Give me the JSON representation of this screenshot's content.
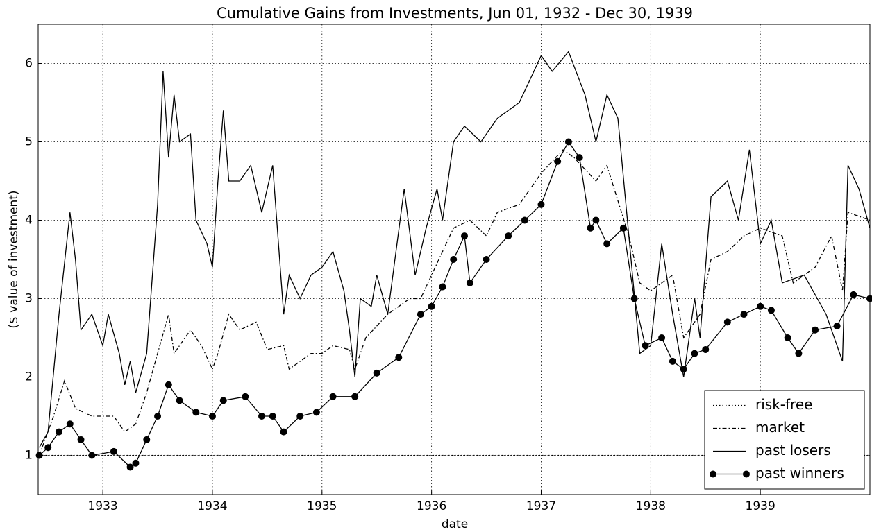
{
  "chart_data": {
    "type": "line",
    "title": "Cumulative Gains from Investments, Jun 01, 1932 - Dec 30, 1939",
    "xlabel": "date",
    "ylabel": "($ value of investment)",
    "xlim": [
      1932.41,
      1940.0
    ],
    "xticks": [
      1933,
      1934,
      1935,
      1936,
      1937,
      1938,
      1939
    ],
    "ylim": [
      0.5,
      6.5
    ],
    "yticks": [
      1,
      2,
      3,
      4,
      5,
      6
    ],
    "grid": true,
    "legend": "lower right",
    "series": [
      {
        "name": "risk-free",
        "color": "#000000",
        "linestyle": "dotted",
        "x": [
          1932.42,
          1940.0
        ],
        "values": [
          1.0,
          1.0
        ]
      },
      {
        "name": "market",
        "color": "#000000",
        "linestyle": "dashdot",
        "x": [
          1932.42,
          1932.55,
          1932.65,
          1932.75,
          1932.9,
          1933.1,
          1933.2,
          1933.3,
          1933.4,
          1933.5,
          1933.6,
          1933.65,
          1933.8,
          1933.9,
          1934.0,
          1934.05,
          1934.15,
          1934.25,
          1934.4,
          1934.5,
          1934.65,
          1934.7,
          1934.9,
          1935.0,
          1935.1,
          1935.25,
          1935.3,
          1935.4,
          1935.6,
          1935.8,
          1935.9,
          1936.0,
          1936.2,
          1936.35,
          1936.5,
          1936.6,
          1936.8,
          1937.0,
          1937.2,
          1937.3,
          1937.5,
          1937.6,
          1937.8,
          1937.9,
          1938.0,
          1938.2,
          1938.3,
          1938.45,
          1938.55,
          1938.7,
          1938.85,
          1939.0,
          1939.2,
          1939.3,
          1939.5,
          1939.65,
          1939.75,
          1939.8,
          1940.0
        ],
        "values": [
          1.0,
          1.5,
          1.95,
          1.6,
          1.5,
          1.5,
          1.3,
          1.4,
          1.8,
          2.3,
          2.8,
          2.3,
          2.6,
          2.4,
          2.1,
          2.3,
          2.8,
          2.6,
          2.7,
          2.35,
          2.4,
          2.1,
          2.3,
          2.3,
          2.4,
          2.35,
          2.1,
          2.5,
          2.8,
          3.0,
          3.0,
          3.3,
          3.9,
          4.0,
          3.8,
          4.1,
          4.2,
          4.6,
          4.9,
          4.8,
          4.5,
          4.7,
          3.8,
          3.2,
          3.1,
          3.3,
          2.5,
          2.8,
          3.5,
          3.6,
          3.8,
          3.9,
          3.8,
          3.2,
          3.4,
          3.8,
          3.1,
          4.1,
          4.0
        ]
      },
      {
        "name": "past losers",
        "color": "#000000",
        "linestyle": "solid",
        "x": [
          1932.42,
          1932.5,
          1932.6,
          1932.7,
          1932.75,
          1932.8,
          1932.9,
          1933.0,
          1933.05,
          1933.15,
          1933.2,
          1933.25,
          1933.3,
          1933.4,
          1933.5,
          1933.55,
          1933.6,
          1933.65,
          1933.7,
          1933.8,
          1933.85,
          1933.95,
          1934.0,
          1934.05,
          1934.1,
          1934.15,
          1934.25,
          1934.35,
          1934.45,
          1934.55,
          1934.65,
          1934.7,
          1934.8,
          1934.9,
          1935.0,
          1935.1,
          1935.2,
          1935.25,
          1935.3,
          1935.35,
          1935.45,
          1935.5,
          1935.6,
          1935.75,
          1935.85,
          1935.95,
          1936.05,
          1936.1,
          1936.2,
          1936.3,
          1936.45,
          1936.6,
          1936.8,
          1937.0,
          1937.1,
          1937.25,
          1937.4,
          1937.5,
          1937.6,
          1937.7,
          1937.8,
          1937.9,
          1938.0,
          1938.1,
          1938.2,
          1938.3,
          1938.4,
          1938.45,
          1938.55,
          1938.7,
          1938.8,
          1938.9,
          1939.0,
          1939.1,
          1939.2,
          1939.4,
          1939.6,
          1939.75,
          1939.8,
          1939.9,
          1940.0
        ],
        "values": [
          1.1,
          1.3,
          2.8,
          4.1,
          3.5,
          2.6,
          2.8,
          2.4,
          2.8,
          2.3,
          1.9,
          2.2,
          1.8,
          2.3,
          4.2,
          5.9,
          4.8,
          5.6,
          5.0,
          5.1,
          4.0,
          3.7,
          3.4,
          4.5,
          5.4,
          4.5,
          4.5,
          4.7,
          4.1,
          4.7,
          2.8,
          3.3,
          3.0,
          3.3,
          3.4,
          3.6,
          3.1,
          2.6,
          2.0,
          3.0,
          2.9,
          3.3,
          2.8,
          4.4,
          3.3,
          3.9,
          4.4,
          4.0,
          5.0,
          5.2,
          5.0,
          5.3,
          5.5,
          6.1,
          5.9,
          6.15,
          5.6,
          5.0,
          5.6,
          5.3,
          3.8,
          2.3,
          2.4,
          3.7,
          2.8,
          2.0,
          3.0,
          2.5,
          4.3,
          4.5,
          4.0,
          4.9,
          3.7,
          4.0,
          3.2,
          3.3,
          2.8,
          2.2,
          4.7,
          4.4,
          3.9
        ]
      },
      {
        "name": "past winners",
        "color": "#000000",
        "linestyle": "solid",
        "marker": "o",
        "x": [
          1932.42,
          1932.5,
          1932.6,
          1932.7,
          1932.8,
          1932.9,
          1933.1,
          1933.25,
          1933.3,
          1933.4,
          1933.5,
          1933.6,
          1933.7,
          1933.85,
          1934.0,
          1934.1,
          1934.3,
          1934.45,
          1934.55,
          1934.65,
          1934.8,
          1934.95,
          1935.1,
          1935.3,
          1935.5,
          1935.7,
          1935.9,
          1936.0,
          1936.1,
          1936.2,
          1936.3,
          1936.35,
          1936.5,
          1936.7,
          1936.85,
          1937.0,
          1937.15,
          1937.25,
          1937.35,
          1937.45,
          1937.5,
          1937.6,
          1937.75,
          1937.85,
          1937.95,
          1938.1,
          1938.2,
          1938.3,
          1938.4,
          1938.5,
          1938.7,
          1938.85,
          1939.0,
          1939.1,
          1939.25,
          1939.35,
          1939.5,
          1939.7,
          1939.85,
          1940.0
        ],
        "values": [
          1.0,
          1.1,
          1.3,
          1.4,
          1.2,
          1.0,
          1.05,
          0.85,
          0.9,
          1.2,
          1.5,
          1.9,
          1.7,
          1.55,
          1.5,
          1.7,
          1.75,
          1.5,
          1.5,
          1.3,
          1.5,
          1.55,
          1.75,
          1.75,
          2.05,
          2.25,
          2.8,
          2.9,
          3.15,
          3.5,
          3.8,
          3.2,
          3.5,
          3.8,
          4.0,
          4.2,
          4.75,
          5.0,
          4.8,
          3.9,
          4.0,
          3.7,
          3.9,
          3.0,
          2.4,
          2.5,
          2.2,
          2.1,
          2.3,
          2.35,
          2.7,
          2.8,
          2.9,
          2.85,
          2.5,
          2.3,
          2.6,
          2.65,
          3.05,
          3.0
        ]
      }
    ]
  }
}
